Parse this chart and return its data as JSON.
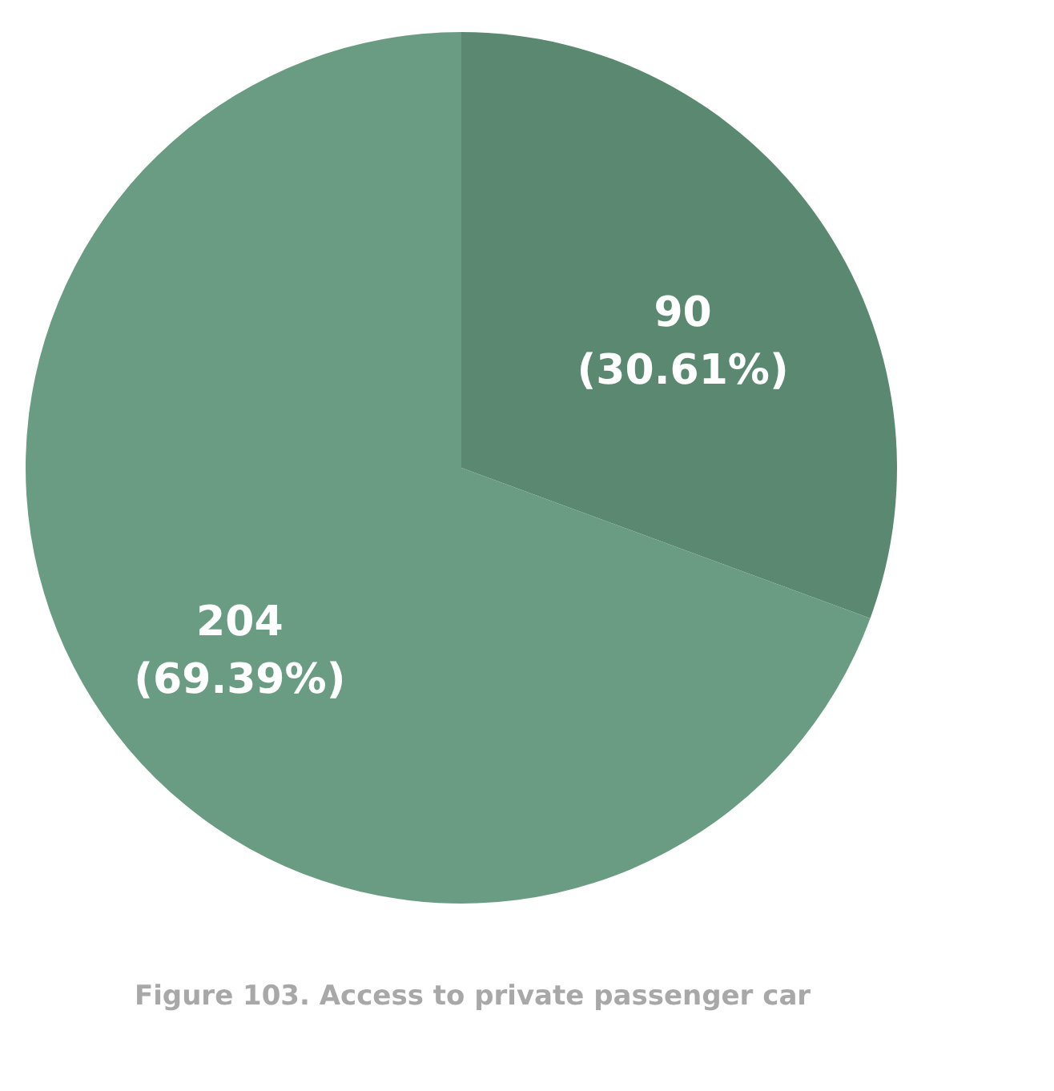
{
  "chart_data": {
    "type": "pie",
    "categories": [
      null,
      null
    ],
    "values": [
      90,
      204
    ],
    "colors": [
      "#5a8870",
      "#6a9c83"
    ],
    "value_labels": [
      "90\n(30.61%)",
      "204\n(69.39%)"
    ],
    "annotations": [
      "Figure 103. Access to private passenger car"
    ]
  }
}
